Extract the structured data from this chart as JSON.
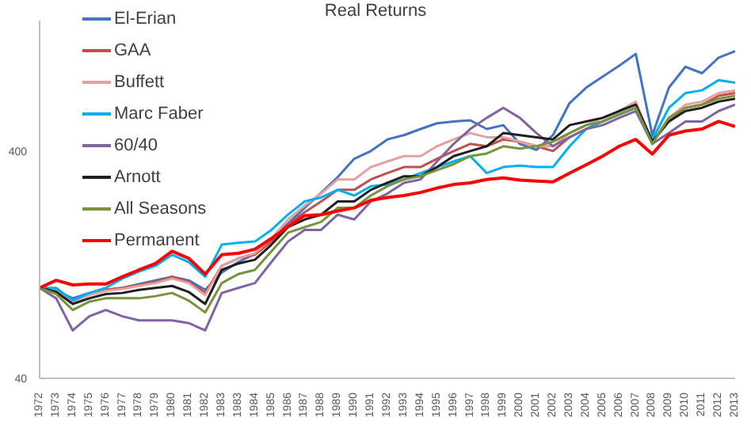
{
  "chart_data": {
    "type": "line",
    "title": "Real Returns",
    "log": true,
    "legend": "top left",
    "grid": false,
    "marker": "none",
    "line_style": "solid",
    "categories": [
      "1972",
      "1973",
      "1974",
      "1975",
      "1976",
      "1977",
      "1978",
      "1979",
      "1980",
      "1981",
      "1982",
      "1983",
      "1983",
      "1984",
      "1985",
      "1986",
      "1987",
      "1988",
      "1989",
      "1990",
      "1991",
      "1992",
      "1993",
      "1994",
      "1995",
      "1996",
      "1997",
      "1998",
      "1999",
      "2000",
      "2001",
      "2002",
      "2003",
      "2004",
      "2005",
      "2006",
      "2007",
      "2008",
      "2009",
      "2010",
      "2011",
      "2012",
      "2013"
    ],
    "ylim": [
      40,
      1500
    ],
    "yticks": [
      40,
      400
    ],
    "series": [
      {
        "name": "El-Erian",
        "color": "#4472c4",
        "values": [
          100,
          97,
          90,
          95,
          98,
          100,
          104,
          108,
          112,
          108,
          98,
          117,
          130,
          141,
          165,
          192,
          225,
          262,
          307,
          370,
          400,
          450,
          470,
          500,
          530,
          540,
          546,
          500,
          520,
          430,
          405,
          470,
          650,
          760,
          850,
          950,
          1070,
          470,
          760,
          940,
          880,
          1030,
          1100
        ]
      },
      {
        "name": "GAA",
        "color": "#c0504d",
        "values": [
          100,
          98,
          88,
          94,
          98,
          100,
          103,
          106,
          112,
          106,
          95,
          125,
          135,
          140,
          160,
          190,
          215,
          240,
          270,
          270,
          300,
          320,
          340,
          340,
          370,
          400,
          430,
          420,
          450,
          440,
          420,
          400,
          460,
          500,
          540,
          580,
          620,
          440,
          540,
          620,
          640,
          700,
          720
        ]
      },
      {
        "name": "Buffett",
        "color": "#e6a09e",
        "values": [
          100,
          97,
          87,
          93,
          97,
          99,
          102,
          105,
          110,
          105,
          93,
          125,
          135,
          142,
          165,
          200,
          230,
          260,
          300,
          300,
          340,
          360,
          380,
          380,
          420,
          450,
          480,
          460,
          460,
          440,
          420,
          420,
          480,
          520,
          560,
          600,
          660,
          440,
          560,
          640,
          660,
          720,
          740
        ]
      },
      {
        "name": "Marc Faber",
        "color": "#00b0f0",
        "values": [
          100,
          100,
          88,
          95,
          100,
          110,
          118,
          125,
          140,
          130,
          112,
          155,
          158,
          160,
          180,
          210,
          240,
          250,
          270,
          255,
          280,
          285,
          300,
          320,
          340,
          360,
          380,
          320,
          340,
          345,
          340,
          340,
          420,
          500,
          540,
          580,
          620,
          450,
          620,
          720,
          740,
          820,
          800
        ]
      },
      {
        "name": "60/40",
        "color": "#8064a2",
        "values": [
          100,
          90,
          65,
          75,
          80,
          75,
          72,
          72,
          72,
          70,
          65,
          95,
          100,
          105,
          130,
          160,
          180,
          180,
          210,
          200,
          240,
          260,
          290,
          300,
          360,
          430,
          500,
          560,
          620,
          560,
          480,
          420,
          460,
          500,
          520,
          560,
          600,
          430,
          480,
          540,
          540,
          600,
          640
        ]
      },
      {
        "name": "Arnott",
        "color": "#1f1f1f",
        "values": [
          100,
          96,
          85,
          90,
          94,
          95,
          98,
          100,
          102,
          96,
          85,
          120,
          128,
          133,
          155,
          185,
          200,
          210,
          240,
          240,
          270,
          290,
          310,
          310,
          340,
          380,
          400,
          420,
          480,
          470,
          460,
          450,
          520,
          540,
          560,
          600,
          640,
          440,
          540,
          600,
          620,
          660,
          680
        ]
      },
      {
        "name": "All Seasons",
        "color": "#77933c",
        "values": [
          100,
          94,
          80,
          87,
          90,
          90,
          90,
          92,
          95,
          88,
          78,
          105,
          115,
          120,
          145,
          175,
          185,
          195,
          225,
          225,
          255,
          280,
          300,
          310,
          330,
          350,
          380,
          390,
          420,
          410,
          420,
          440,
          480,
          520,
          540,
          580,
          620,
          430,
          560,
          620,
          640,
          680,
          700
        ]
      },
      {
        "name": "Permanent",
        "color": "#ff0000",
        "values": [
          100,
          108,
          103,
          104,
          104,
          112,
          120,
          128,
          145,
          135,
          115,
          140,
          142,
          148,
          165,
          186,
          208,
          210,
          218,
          225,
          243,
          250,
          255,
          263,
          275,
          285,
          290,
          300,
          305,
          298,
          295,
          293,
          320,
          348,
          380,
          420,
          450,
          388,
          470,
          490,
          500,
          540,
          513
        ]
      }
    ]
  }
}
